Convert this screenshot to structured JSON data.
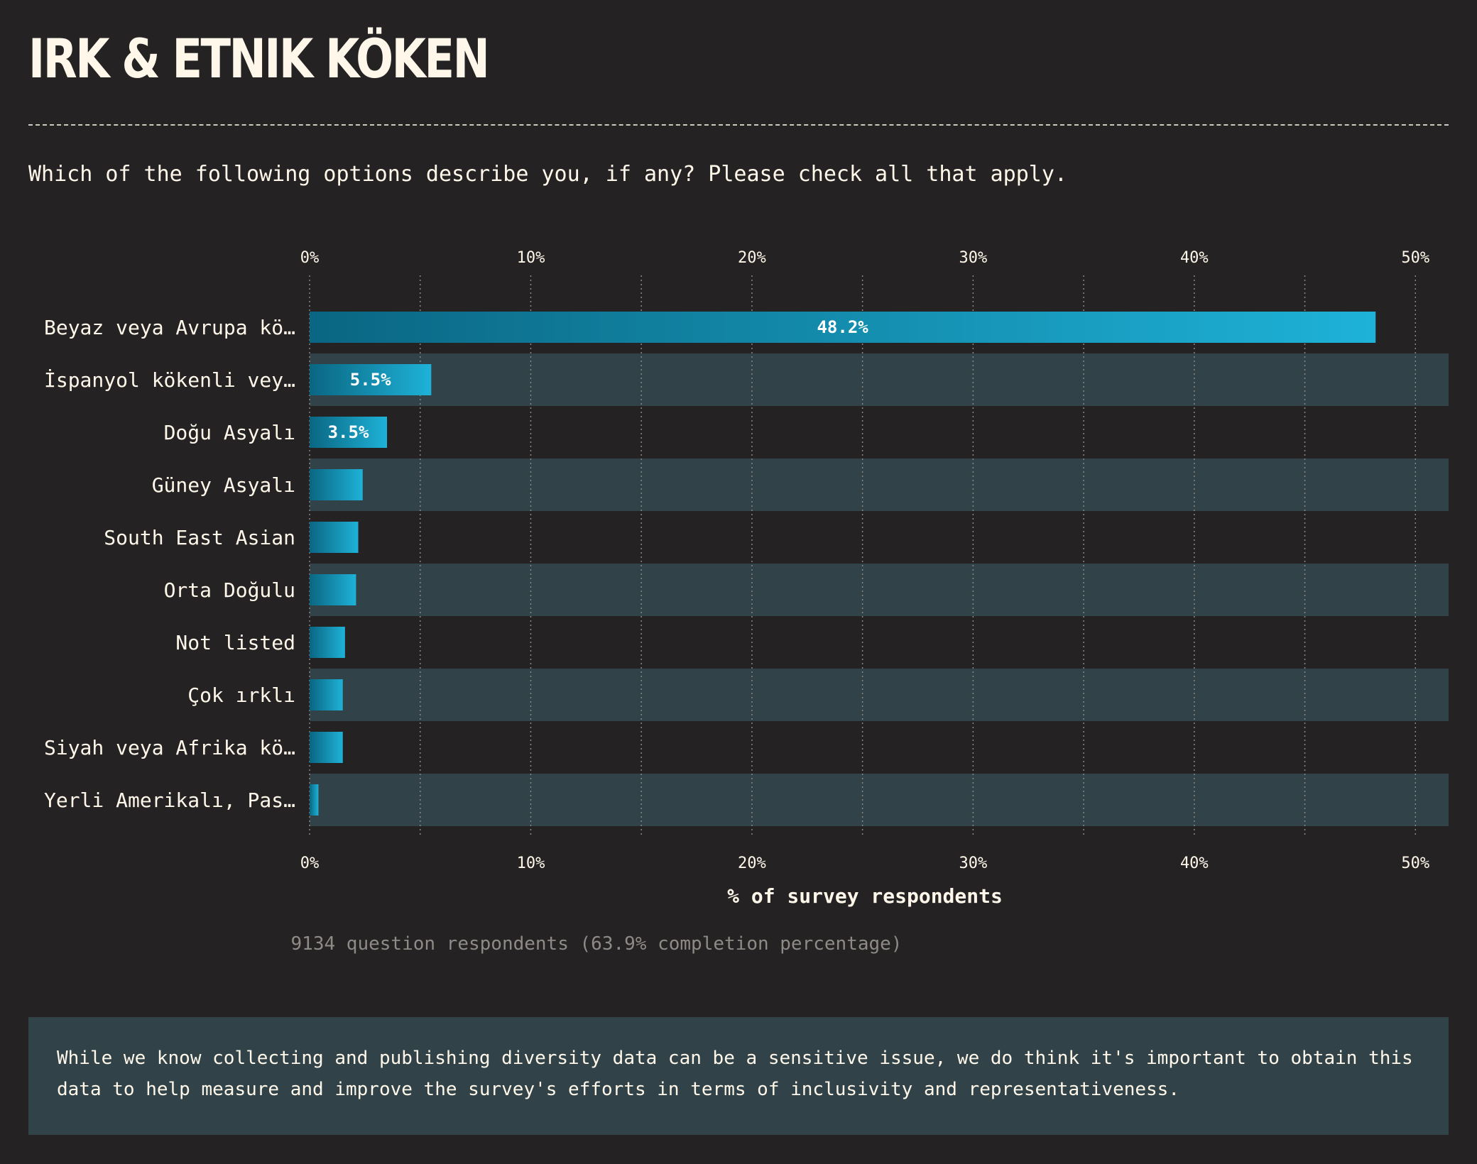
{
  "header": {
    "title": "IRK & ETNIK KÖKEN",
    "question": "Which of the following options describe you, if any? Please check all that apply."
  },
  "chart_data": {
    "type": "bar",
    "orientation": "horizontal",
    "categories": [
      "Beyaz veya Avrupa kö…",
      "İspanyol kökenli vey…",
      "Doğu Asyalı",
      "Güney Asyalı",
      "South East Asian",
      "Orta Doğulu",
      "Not listed",
      "Çok ırklı",
      "Siyah veya Afrika kö…",
      "Yerli Amerikalı, Pas…"
    ],
    "values": [
      48.2,
      5.5,
      3.5,
      2.4,
      2.2,
      2.1,
      1.6,
      1.5,
      1.5,
      0.4
    ],
    "value_labels": [
      "48.2%",
      "5.5%",
      "3.5%",
      "",
      "",
      "",
      "",
      "",
      "",
      ""
    ],
    "xlabel": "% of survey respondents",
    "xlim": [
      0,
      51.5
    ],
    "xticks": [
      0,
      10,
      20,
      30,
      40,
      50
    ],
    "xtick_labels": [
      "0%",
      "10%",
      "20%",
      "30%",
      "40%",
      "50%"
    ],
    "grid": true,
    "bar_color_start": "#0a6682",
    "bar_color_end": "#1eb2d8",
    "stripe_color": "#314348"
  },
  "footer": {
    "respondents": "9134 question respondents (63.9% completion percentage)",
    "note": "While we know collecting and publishing diversity data can be a sensitive issue, we do think it's important to obtain this data to help measure and improve the survey's efforts in terms of inclusivity and representativeness."
  }
}
